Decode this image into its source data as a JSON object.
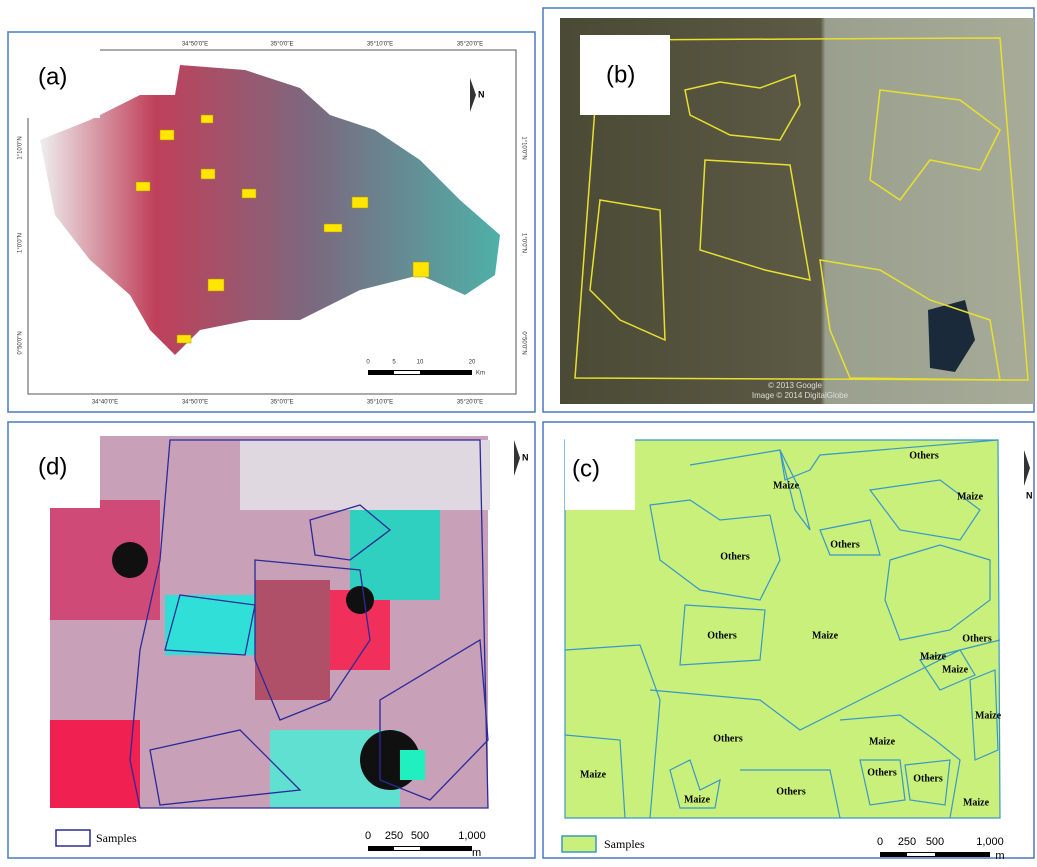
{
  "panels": [
    {
      "label": "(a)",
      "north": "N",
      "top_ticks": [
        "34°50'0\"E",
        "35°0'0\"E",
        "35°10'0\"E",
        "35°20'0\"E"
      ],
      "bottom_ticks": [
        "34°40'0\"E",
        "34°50'0\"E",
        "35°0'0\"E",
        "35°10'0\"E",
        "35°20'0\"E"
      ],
      "lat_ticks": [
        "1°10'0\"N",
        "1°0'0\"N",
        "0°50'0\"N"
      ],
      "scale": [
        "0",
        "5",
        "10",
        "20"
      ],
      "scale_unit": "Km"
    },
    {
      "label": "(b)",
      "credits": [
        "© 2013 Google",
        "Image © 2014 DigitalGlobe"
      ]
    },
    {
      "label": "(d)",
      "north": "N",
      "legend": "Samples",
      "scale": [
        "0",
        "250",
        "500",
        "1,000"
      ],
      "scale_unit": "m"
    },
    {
      "label": "(c)",
      "north": "N",
      "legend": "Samples",
      "scale": [
        "0",
        "250",
        "500",
        "1,000"
      ],
      "scale_unit": "m",
      "fields": [
        "Others",
        "Maize",
        "Maize",
        "Others",
        "Others",
        "Others",
        "Maize",
        "Others",
        "Maize",
        "Maize",
        "Maize",
        "Others",
        "Maize",
        "Others",
        "Others",
        "Maize",
        "Maize",
        "Others",
        "Maize"
      ]
    }
  ]
}
